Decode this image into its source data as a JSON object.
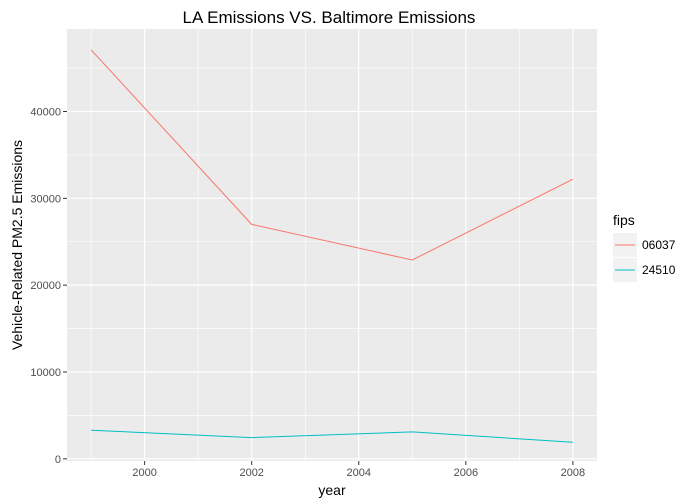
{
  "chart_data": {
    "type": "line",
    "title": "LA  Emissions VS. Baltimore  Emissions",
    "xlabel": "year",
    "ylabel": "Vehicle-Related PM2.5 Emissions",
    "x": [
      1999,
      2002,
      2005,
      2008
    ],
    "series": [
      {
        "name": "06037",
        "color": "#f8766d",
        "values": [
          47100,
          27000,
          22900,
          32200
        ]
      },
      {
        "name": "24510",
        "color": "#00bfc4",
        "values": [
          3300,
          2450,
          3100,
          1900
        ]
      }
    ],
    "xlim": [
      1998.55,
      2008.45
    ],
    "ylim": [
      -250,
      49500
    ],
    "x_ticks": [
      "2000",
      "2002",
      "2004",
      "2006",
      "2008"
    ],
    "y_ticks": [
      "0",
      "10000",
      "20000",
      "30000",
      "40000"
    ],
    "legend": {
      "title": "fips",
      "position": "right"
    },
    "grid": true,
    "background": "#ebebeb",
    "grid_color": "#ffffff"
  }
}
